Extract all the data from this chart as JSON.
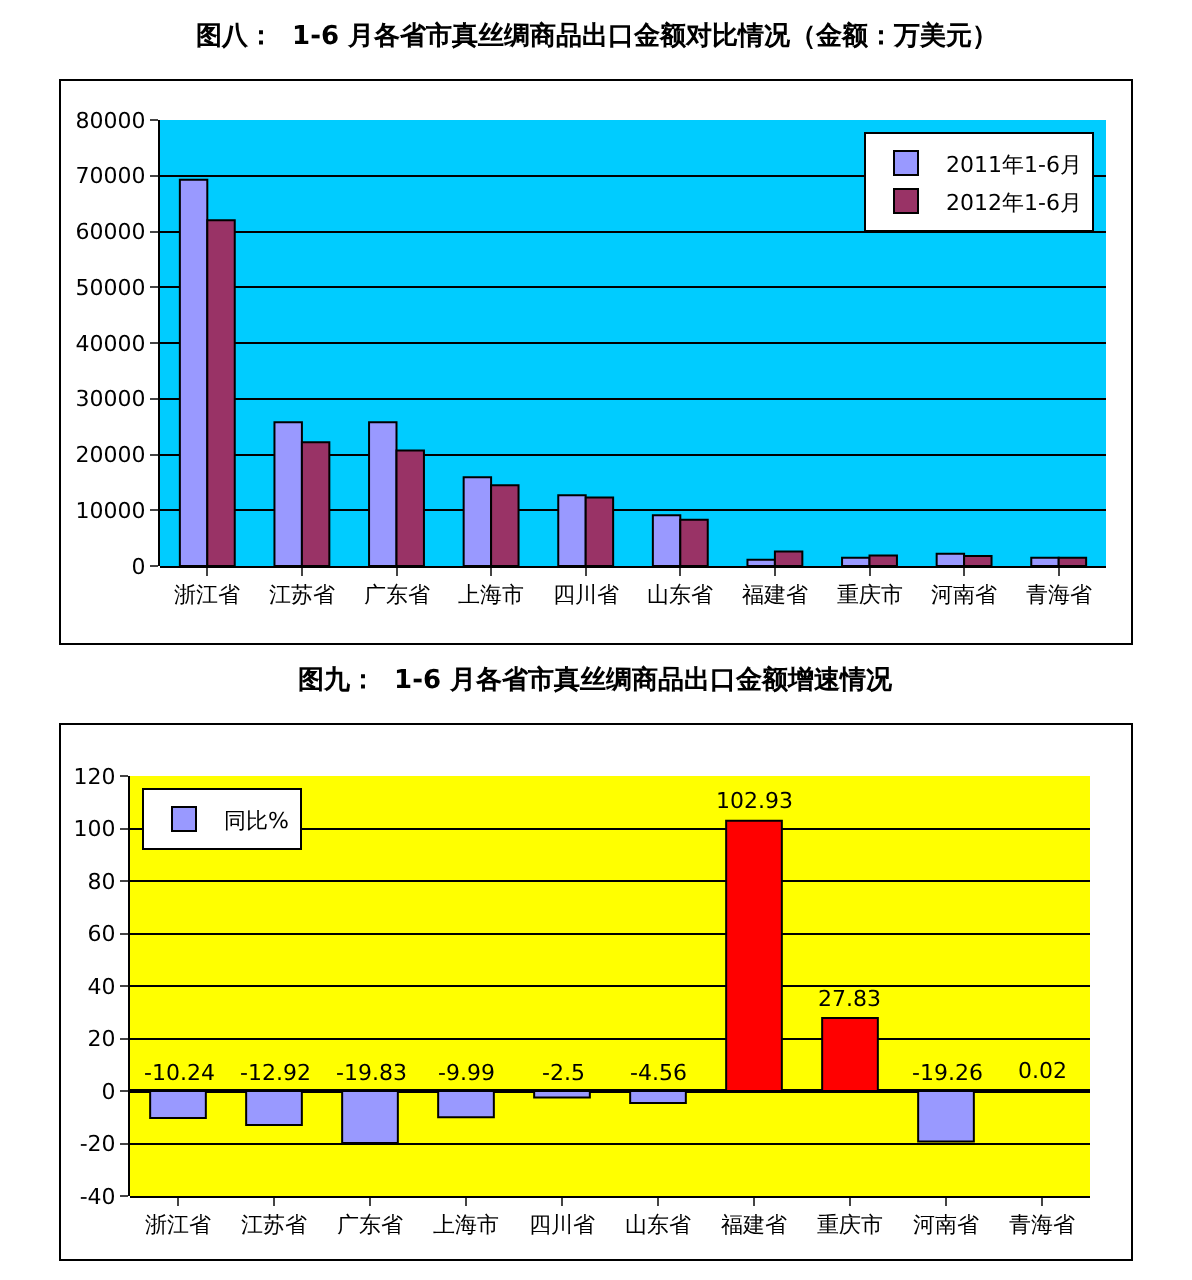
{
  "chart_data": [
    {
      "type": "bar",
      "title": "图八：  1-6 月各省市真丝绸商品出口金额对比情况（金额：万美元）",
      "categories": [
        "浙江省",
        "江苏省",
        "广东省",
        "上海市",
        "四川省",
        "山东省",
        "福建省",
        "重庆市",
        "河南省",
        "青海省"
      ],
      "series": [
        {
          "name": "2011年1-6月",
          "color": "#9999ff",
          "values": [
            69300,
            25800,
            25800,
            15900,
            12700,
            9100,
            1100,
            1500,
            2200,
            1500
          ]
        },
        {
          "name": "2012年1-6月",
          "color": "#993366",
          "values": [
            62000,
            22200,
            20700,
            14500,
            12300,
            8300,
            2600,
            1900,
            1800,
            1500
          ]
        }
      ],
      "ylim": [
        0,
        80000
      ],
      "yticks": [
        0,
        10000,
        20000,
        30000,
        40000,
        50000,
        60000,
        70000,
        80000
      ],
      "grid": "y",
      "legend": "top right"
    },
    {
      "type": "bar",
      "title": "图九：  1-6 月各省市真丝绸商品出口金额增速情况",
      "categories": [
        "浙江省",
        "江苏省",
        "广东省",
        "上海市",
        "四川省",
        "山东省",
        "福建省",
        "重庆市",
        "河南省",
        "青海省"
      ],
      "series": [
        {
          "name": "同比%",
          "colors": [
            "#9999ff",
            "#9999ff",
            "#9999ff",
            "#9999ff",
            "#9999ff",
            "#9999ff",
            "#ff0000",
            "#ff0000",
            "#9999ff",
            "#ff0000"
          ],
          "values": [
            -10.24,
            -12.92,
            -19.83,
            -9.99,
            -2.5,
            -4.56,
            102.93,
            27.83,
            -19.26,
            0.02
          ]
        }
      ],
      "ylim": [
        -40,
        120
      ],
      "yticks": [
        -40,
        -20,
        0,
        20,
        40,
        60,
        80,
        100,
        120
      ],
      "grid": "y",
      "legend": "top left",
      "data_labels": true
    }
  ]
}
